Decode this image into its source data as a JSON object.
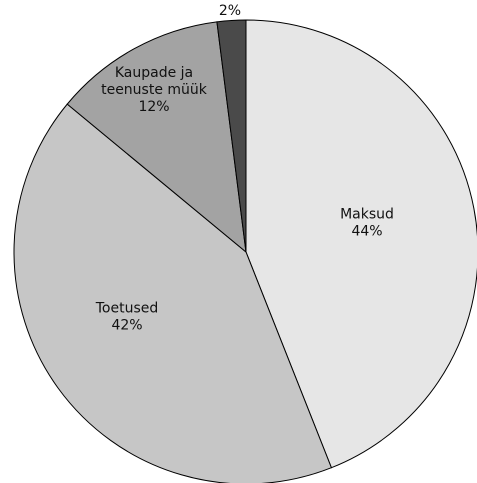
{
  "chart_data": {
    "type": "pie",
    "slices": [
      {
        "label_lines": [
          "Maksud"
        ],
        "value_label": "44%",
        "value": 44,
        "color": "#e6e6e6"
      },
      {
        "label_lines": [
          "Toetused"
        ],
        "value_label": "42%",
        "value": 42,
        "color": "#c6c6c6"
      },
      {
        "label_lines": [
          "Kaupade ja",
          "teenuste müük"
        ],
        "value_label": "12%",
        "value": 12,
        "color": "#a3a3a3"
      },
      {
        "label_lines": [],
        "value_label": "2%",
        "value": 2,
        "color": "#4a4a4a"
      }
    ],
    "start_angle_deg": 0,
    "direction": "clockwise",
    "legend": "none",
    "labels": "on-slice"
  }
}
